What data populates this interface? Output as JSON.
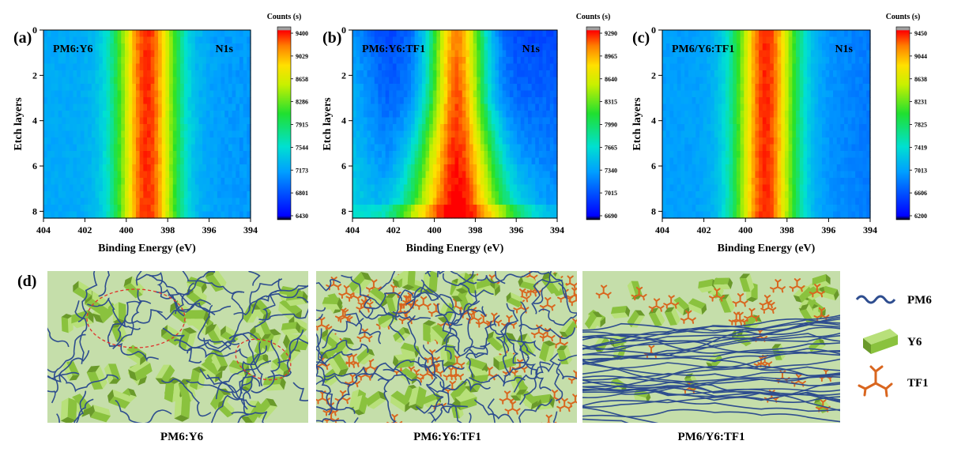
{
  "chart_data": [
    {
      "type": "heatmap",
      "panel_label": "(a)",
      "sample_label": "PM6:Y6",
      "region_label": "N1s",
      "xlabel": "Binding Energy (eV)",
      "ylabel": "Etch layers",
      "xlim": [
        404,
        394
      ],
      "ylim": [
        0,
        8.3
      ],
      "x_ticks": [
        "404",
        "402",
        "400",
        "398",
        "396",
        "394"
      ],
      "y_ticks": [
        "0",
        "2",
        "4",
        "6",
        "8"
      ],
      "colorbar_title": "Counts (s)",
      "colorbar_ticks": [
        "9400",
        "9029",
        "8658",
        "8286",
        "7915",
        "7544",
        "7173",
        "6801",
        "6430"
      ],
      "peak_center_eV": 399.0,
      "background_counts": 7170,
      "peak_counts": 9300
    },
    {
      "type": "heatmap",
      "panel_label": "(b)",
      "sample_label": "PM6:Y6:TF1",
      "region_label": "N1s",
      "xlabel": "Binding Energy (eV)",
      "ylabel": "Etch layers",
      "xlim": [
        404,
        394
      ],
      "ylim": [
        0,
        8.3
      ],
      "x_ticks": [
        "404",
        "402",
        "400",
        "398",
        "396",
        "394"
      ],
      "y_ticks": [
        "0",
        "2",
        "4",
        "6",
        "8"
      ],
      "colorbar_title": "Counts (s)",
      "colorbar_ticks": [
        "9290",
        "8965",
        "8640",
        "8315",
        "7990",
        "7665",
        "7340",
        "7015",
        "6690"
      ],
      "peak_center_eV": 398.9,
      "background_counts": 7150,
      "peak_counts": 9200
    },
    {
      "type": "heatmap",
      "panel_label": "(c)",
      "sample_label": "PM6/Y6:TF1",
      "region_label": "N1s",
      "xlabel": "Binding Energy (eV)",
      "ylabel": "Etch layers",
      "xlim": [
        404,
        394
      ],
      "ylim": [
        0,
        8.3
      ],
      "x_ticks": [
        "404",
        "402",
        "400",
        "398",
        "396",
        "394"
      ],
      "y_ticks": [
        "0",
        "2",
        "4",
        "6",
        "8"
      ],
      "colorbar_title": "Counts (s)",
      "colorbar_ticks": [
        "9450",
        "9044",
        "8638",
        "8231",
        "7825",
        "7419",
        "7013",
        "6606",
        "6200"
      ],
      "peak_center_eV": 399.0,
      "background_counts": 6950,
      "peak_counts": 9350
    }
  ],
  "schematic": {
    "panel_label": "(d)",
    "captions": [
      "PM6:Y6",
      "PM6:Y6:TF1",
      "PM6/Y6:TF1"
    ],
    "legend": [
      {
        "label": "PM6",
        "icon": "wavy-line-icon",
        "color": "#2e4d8f"
      },
      {
        "label": "Y6",
        "icon": "green-block-icon",
        "color": "#8ac23e"
      },
      {
        "label": "TF1",
        "icon": "branched-molecule-icon",
        "color": "#d9661f"
      }
    ],
    "colors": {
      "background": "#c5deaa",
      "pm6": "#2e4d8f",
      "y6": "#8ac23e",
      "tf1": "#d9661f",
      "aggregate": "#e0322c"
    }
  }
}
